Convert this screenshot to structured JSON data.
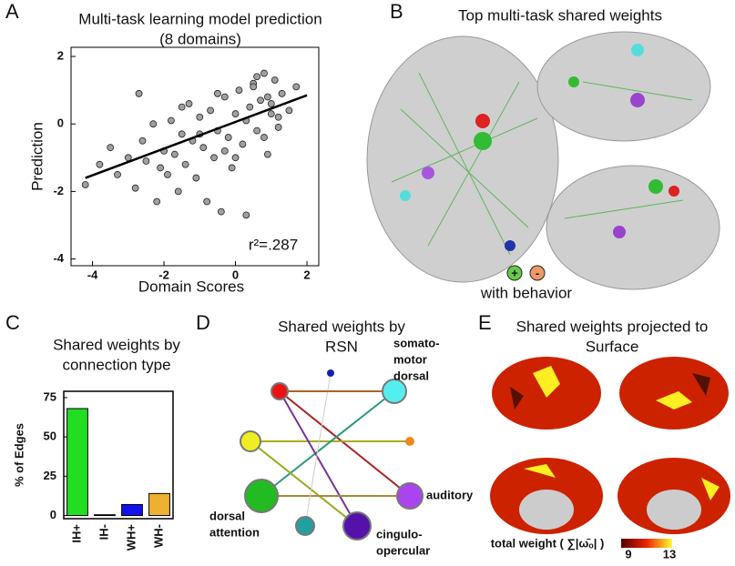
{
  "chart_data": [
    {
      "type": "scatter",
      "panel_label": "A",
      "title": [
        "Multi-task learning model prediction",
        "(8 domains)"
      ],
      "x_label": "Domain Scores",
      "y_label": "Prediction",
      "annotation": "r²=.287",
      "x": [
        -4.2,
        -3.8,
        -3.5,
        -3.3,
        -3.0,
        -2.8,
        -2.7,
        -2.6,
        -2.5,
        -2.3,
        -2.2,
        -2.0,
        -1.9,
        -1.8,
        -1.7,
        -1.6,
        -1.5,
        -1.4,
        -1.3,
        -1.2,
        -1.1,
        -1.0,
        -0.9,
        -0.8,
        -0.7,
        -0.6,
        -0.5,
        -0.4,
        -0.3,
        -0.2,
        -0.1,
        0,
        0.1,
        0.2,
        0.3,
        0.4,
        0.5,
        0.6,
        0.7,
        0.8,
        0.9,
        1.0,
        1.1,
        1.2,
        1.3,
        1.5,
        1.7,
        -2.1,
        -1.5,
        -1.0,
        -0.5,
        0,
        0.3,
        0.5,
        0.8,
        1.0,
        -0.3,
        0.6,
        0.9,
        1.2
      ],
      "values": [
        -1.8,
        -1.2,
        -0.7,
        -1.5,
        -1.0,
        -1.9,
        0.9,
        -0.5,
        -1.1,
        0.0,
        -2.3,
        -0.8,
        -1.5,
        0.1,
        -0.9,
        -2.0,
        -0.3,
        -1.2,
        0.6,
        -0.5,
        -1.6,
        0.2,
        -0.7,
        -2.3,
        0.4,
        -1.0,
        -0.2,
        -2.6,
        0.8,
        -0.4,
        -1.3,
        0.3,
        1.0,
        -0.6,
        -2.7,
        0.5,
        1.2,
        -0.2,
        0.7,
        1.5,
        -0.9,
        0.6,
        1.3,
        0.2,
        0.9,
        0.4,
        1.1,
        -1.3,
        0.5,
        -0.3,
        0.9,
        -1.0,
        0.1,
        1.1,
        -0.4,
        0.3,
        -0.8,
        1.4,
        0.8,
        -0.1
      ],
      "color": "#a0a0a0",
      "fit": {
        "x": [
          -4.2,
          2
        ],
        "y": [
          -1.6,
          0.85
        ]
      },
      "xlim": [
        -4.6,
        2.33
      ],
      "ylim": [
        -4.2,
        2.27
      ],
      "xticks": [
        -4,
        -2,
        0,
        2
      ],
      "yticks": [
        2,
        0,
        -2,
        -4
      ]
    },
    {
      "type": "bar",
      "panel_label": "C",
      "title": [
        "Shared weights by",
        "connection type"
      ],
      "y_label": "% of Edges",
      "categories": [
        "IH+",
        "IH-",
        "WH+",
        "WH-"
      ],
      "values": [
        68,
        0.5,
        7,
        14
      ],
      "colors": [
        "#22dd22",
        "#66bbee",
        "#1111ee",
        "#eeb030"
      ],
      "ylim": [
        -2,
        79
      ],
      "yticks": [
        0,
        25,
        50,
        75
      ]
    }
  ],
  "panels": {
    "b": {
      "label": "B",
      "title": "Top multi-task shared weights",
      "legend_signs": [
        "+",
        "-"
      ],
      "legend": "with behavior"
    },
    "d": {
      "label": "D",
      "title": [
        "Shared weights by",
        "RSN"
      ],
      "nodes": [
        [
          "somato-",
          "motor",
          "dorsal"
        ],
        [
          "auditory"
        ],
        [
          "cingulo-",
          "opercular"
        ],
        [
          "dorsal",
          "attention"
        ]
      ]
    },
    "e": {
      "label": "E",
      "title": [
        "Shared weights projected to",
        "Surface"
      ],
      "colorbar_label": "total weight ( ∑|ω̄ₒ| )",
      "colorbar_ticks": [
        "9",
        "13"
      ]
    }
  }
}
